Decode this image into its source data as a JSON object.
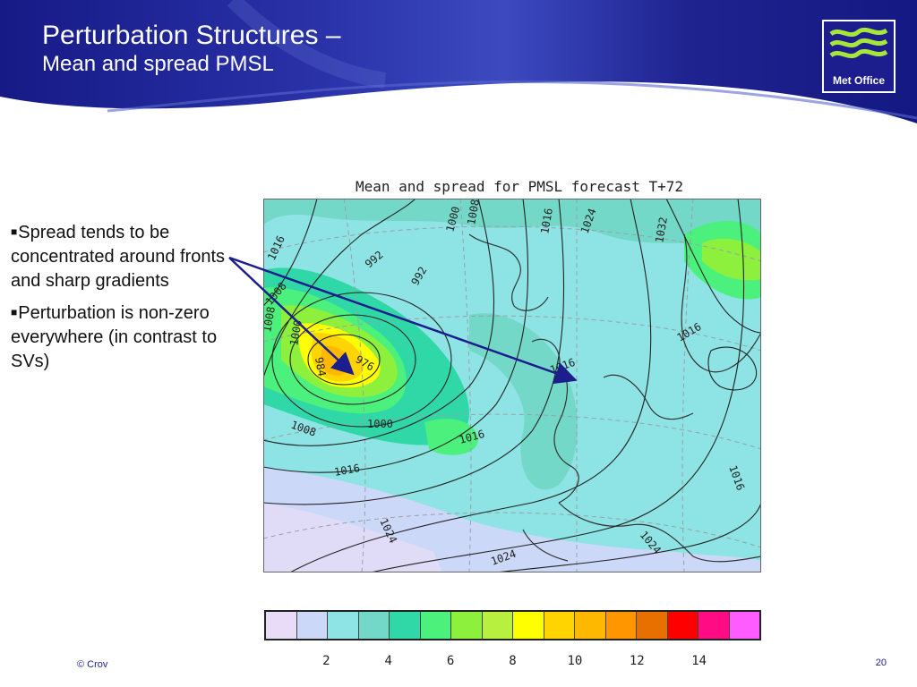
{
  "slide": {
    "title_line1": "Perturbation Structures –",
    "title_line2": "Mean and spread PMSL",
    "logo_text": "Met Office",
    "footer_left": "© Crov",
    "page_number": "20"
  },
  "bullets": [
    "Spread tends to be concentrated around fronts and sharp gradients",
    "Perturbation is non-zero everywhere (in contrast to SVs)"
  ],
  "colors": {
    "header_navy": "#1b1e8c",
    "arrow": "#1b1e8c"
  },
  "chart_data": {
    "type": "heatmap",
    "title": "Mean and spread for PMSL forecast T+72",
    "contour_labels": [
      "1016",
      "992",
      "992",
      "1000",
      "1008",
      "1016",
      "1024",
      "1032",
      "1008",
      "1008",
      "1000",
      "984",
      "976",
      "1000",
      "1008",
      "1016",
      "1016",
      "1016",
      "1024",
      "1024",
      "1024",
      "1016",
      "1016"
    ],
    "colorbar": {
      "colors": [
        "#e8dcf8",
        "#ccd8f8",
        "#8ee4e4",
        "#74d8c8",
        "#30d8a8",
        "#4cf07c",
        "#8cf03c",
        "#b8f040",
        "#ffff00",
        "#ffd400",
        "#ffb800",
        "#ff9600",
        "#e87000",
        "#ff0000",
        "#ff0c84",
        "#ff5cff"
      ],
      "tick_labels": [
        "2",
        "4",
        "6",
        "8",
        "10",
        "12",
        "14"
      ]
    }
  }
}
